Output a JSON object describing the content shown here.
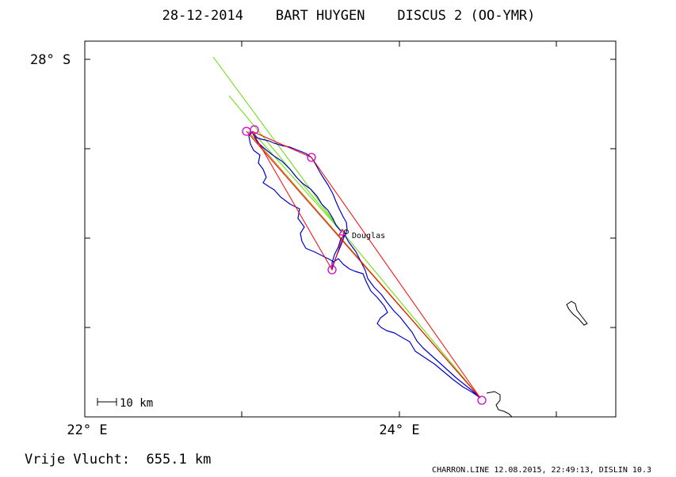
{
  "title": "28-12-2014    BART HUYGEN    DISCUS 2 (OO-YMR)",
  "axes": {
    "lat_label": "28° S",
    "lon_labels": [
      "22° E",
      "24° E"
    ]
  },
  "scale_bar": {
    "label": "10 km"
  },
  "waypoint_label": "Douglas",
  "distance_text": "Vrije Vlucht:  655.1 km",
  "footer": "CHARRON.LINE 12.08.2015, 22:49:13, DISLIN 10.3",
  "colors": {
    "track": "#0000cc",
    "task_line": "#ff0000",
    "turnpoint": "#cc00cc",
    "green_lines": "#66dd00",
    "olive_line": "#888800",
    "coast": "#000000"
  },
  "icons": {
    "turnpoint": "circle-marker-icon",
    "start": "triangle-marker-icon"
  }
}
